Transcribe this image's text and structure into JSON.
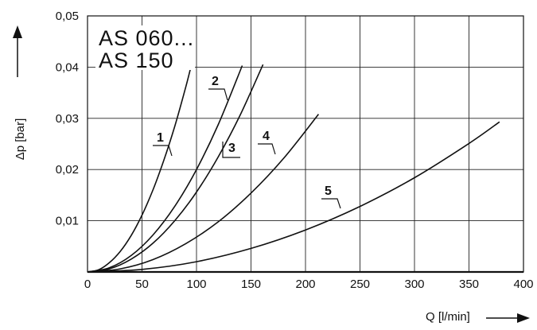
{
  "chart_data": {
    "type": "line",
    "title": "",
    "models": [
      "AS 060...",
      "AS 150"
    ],
    "xlabel": "Q [l/min]",
    "ylabel": "Δp [bar]",
    "xlim": [
      0,
      400
    ],
    "ylim": [
      0,
      0.05
    ],
    "x_ticks": [
      "0",
      "50",
      "100",
      "150",
      "200",
      "250",
      "300",
      "350",
      "400"
    ],
    "y_ticks": [
      "0,01",
      "0,02",
      "0,03",
      "0,04",
      "0,05"
    ],
    "grid": true,
    "series": [
      {
        "name": "1",
        "x": [
          0,
          10,
          20,
          30,
          40,
          50,
          60,
          70,
          80,
          90,
          96
        ],
        "y": [
          0,
          0.0004,
          0.0018,
          0.004,
          0.0071,
          0.0111,
          0.016,
          0.0218,
          0.0284,
          0.036,
          0.041
        ]
      },
      {
        "name": "2",
        "x": [
          0,
          20,
          40,
          60,
          80,
          100,
          120,
          142
        ],
        "y": [
          0,
          0.0008,
          0.0032,
          0.0072,
          0.0128,
          0.02,
          0.0288,
          0.0403
        ]
      },
      {
        "name": "3",
        "x": [
          0,
          20,
          40,
          60,
          80,
          100,
          120,
          140,
          161
        ],
        "y": [
          0,
          0.0006,
          0.0025,
          0.0056,
          0.01,
          0.0156,
          0.0225,
          0.0306,
          0.0405
        ]
      },
      {
        "name": "4",
        "x": [
          0,
          30,
          60,
          90,
          120,
          150,
          180,
          212
        ],
        "y": [
          0,
          0.0006,
          0.0024,
          0.0055,
          0.0098,
          0.0154,
          0.0222,
          0.0308
        ]
      },
      {
        "name": "5",
        "x": [
          0,
          50,
          100,
          150,
          200,
          250,
          300,
          350,
          378
        ],
        "y": [
          0,
          0.0005,
          0.002,
          0.0046,
          0.0082,
          0.0128,
          0.0184,
          0.0251,
          0.0293
        ]
      }
    ],
    "series_labels": [
      "1",
      "2",
      "3",
      "4",
      "5"
    ]
  }
}
